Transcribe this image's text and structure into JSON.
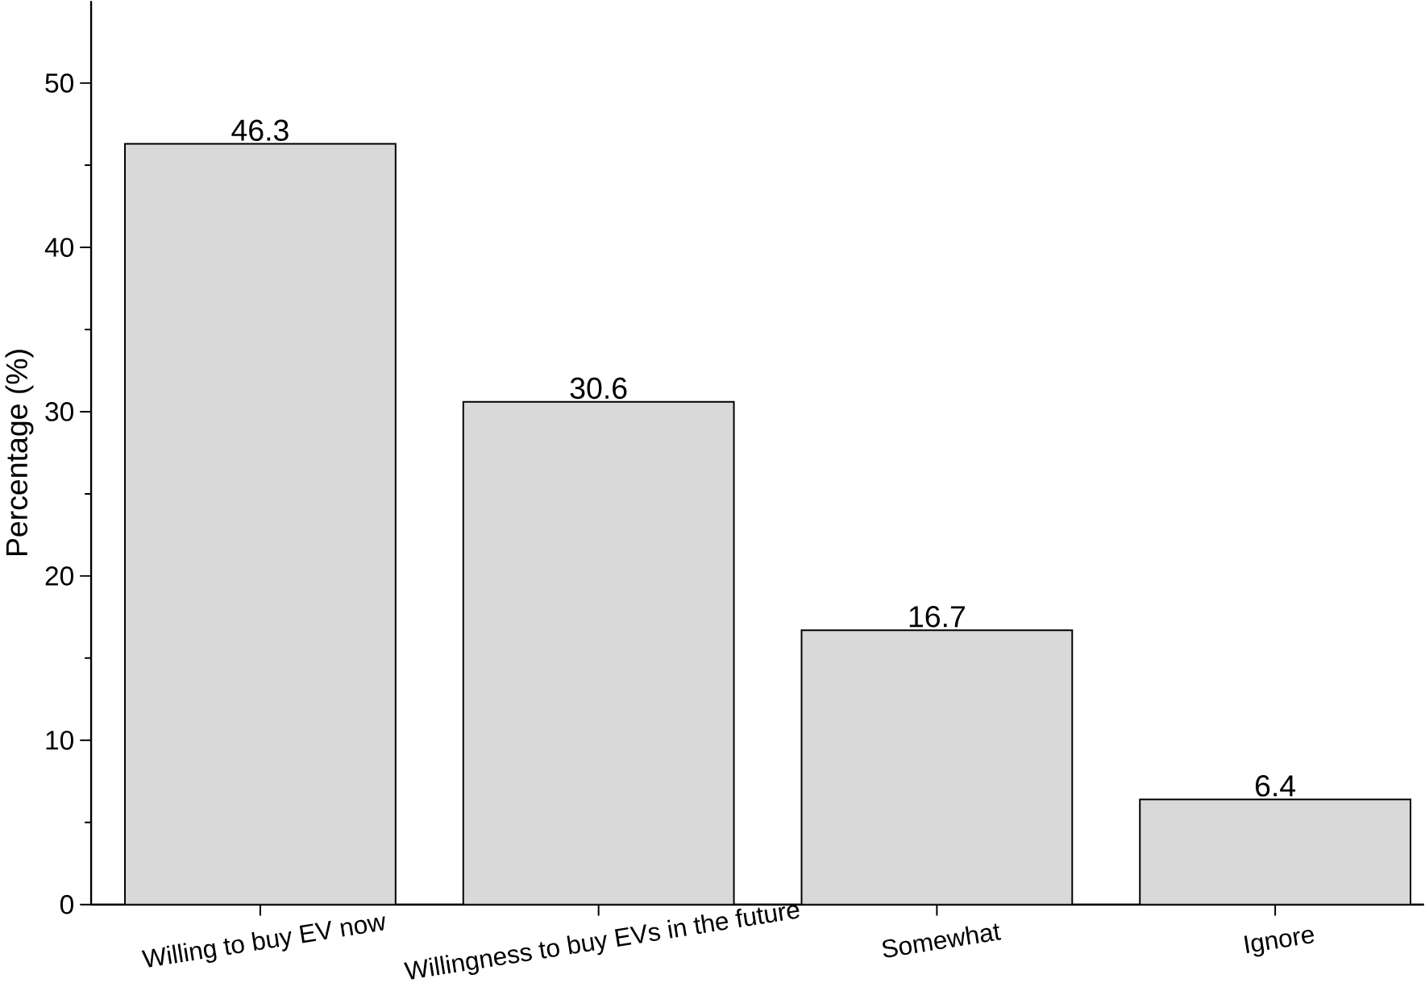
{
  "chart_data": {
    "type": "bar",
    "ylabel": "Percentage (%)",
    "categories": [
      "Willing to buy EV now",
      "Willingness to buy EVs in the future",
      "Somewhat",
      "Ignore"
    ],
    "values": [
      46.3,
      30.6,
      16.7,
      6.4
    ],
    "color": "#d9d9d9",
    "ylim": [
      0,
      55
    ],
    "yticks": [
      0,
      10,
      20,
      30,
      40,
      50
    ],
    "data_labels": true,
    "grid": false
  }
}
